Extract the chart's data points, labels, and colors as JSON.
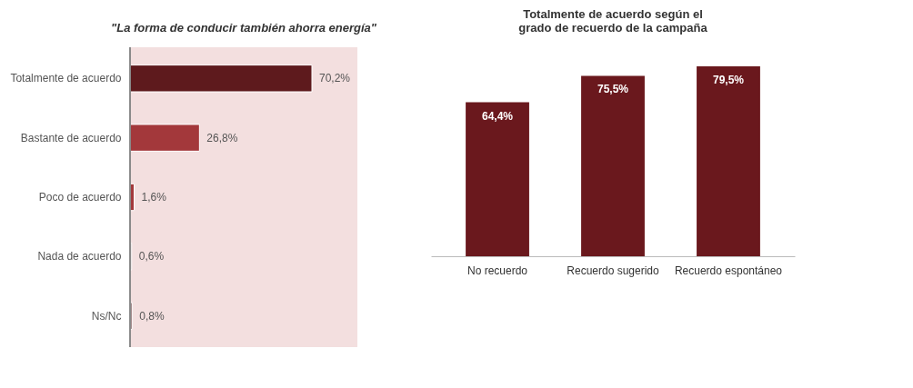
{
  "chart_data": [
    {
      "type": "bar",
      "orientation": "horizontal",
      "title": "\"La forma de conducir también ahorra energía\"",
      "categories": [
        "Totalmente de acuerdo",
        "Bastante de acuerdo",
        "Poco de acuerdo",
        "Nada de acuerdo",
        "Ns/Nc"
      ],
      "values": [
        70.2,
        26.8,
        1.6,
        0.6,
        0.8
      ],
      "value_labels": [
        "70,2%",
        "26,8%",
        "1,6%",
        "0,6%",
        "0,8%"
      ],
      "colors": [
        "#5e1a1d",
        "#a3383b",
        "#a3383b",
        "#8c6d6e",
        "#8c6d6e"
      ]
    },
    {
      "type": "bar",
      "title": "Totalmente de acuerdo según el grado de recuerdo de la campaña",
      "categories": [
        "No recuerdo",
        "Recuerdo sugerido",
        "Recuerdo espontáneo"
      ],
      "values": [
        64.4,
        75.5,
        79.5
      ],
      "value_labels": [
        "64,4%",
        "75,5%",
        "79,5%"
      ],
      "colors": [
        "#6a181d",
        "#6a181d",
        "#6a181d"
      ]
    }
  ]
}
